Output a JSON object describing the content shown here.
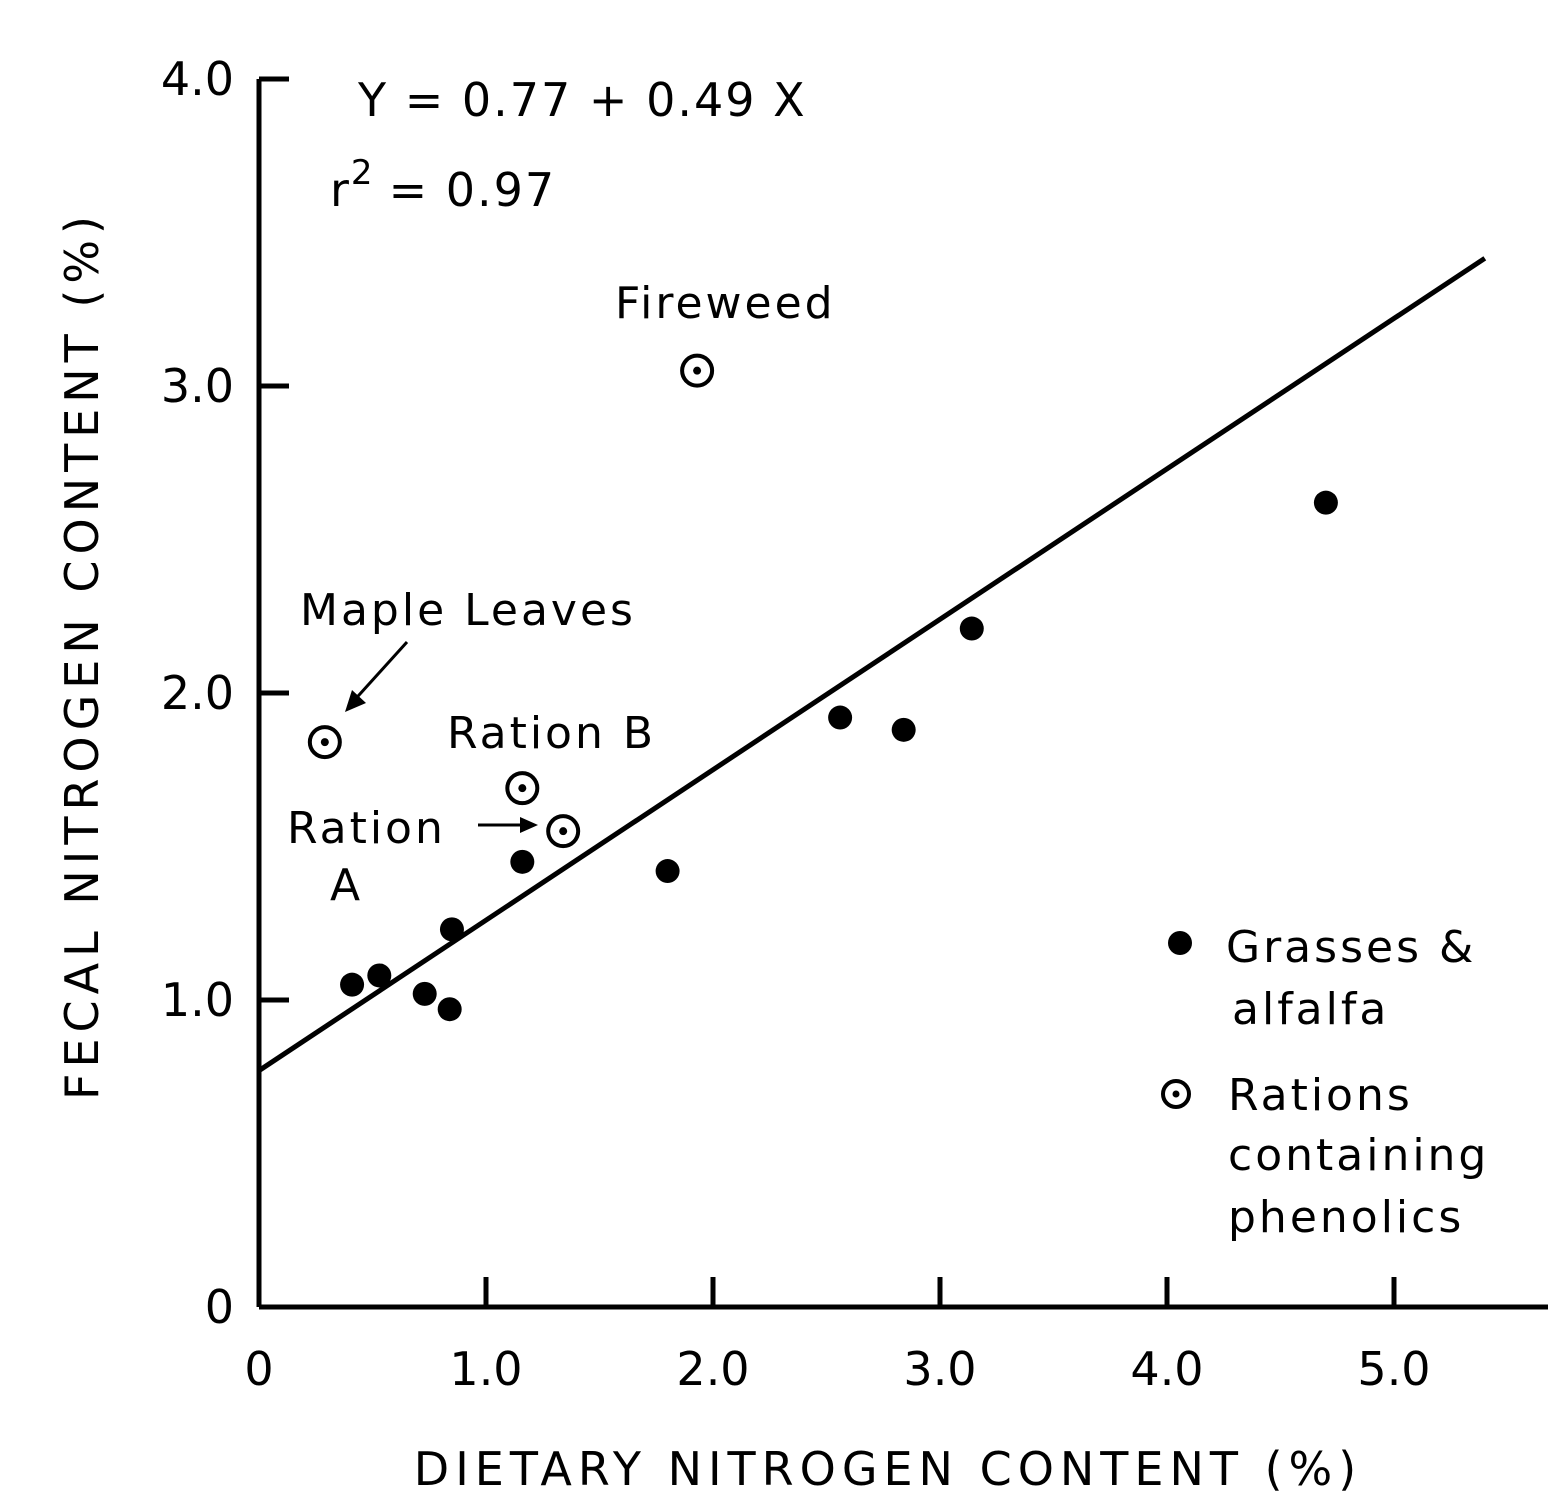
{
  "chart_data": {
    "type": "scatter",
    "xlabel": "DIETARY NITROGEN CONTENT (%)",
    "ylabel": "FECAL NITROGEN CONTENT (%)",
    "xlim": [
      0,
      5.5
    ],
    "ylim": [
      0,
      4.0
    ],
    "x_ticks": [
      0,
      1.0,
      2.0,
      3.0,
      4.0,
      5.0
    ],
    "x_tick_labels": [
      "0",
      "1.0",
      "2.0",
      "3.0",
      "4.0",
      "5.0"
    ],
    "y_ticks": [
      0,
      1.0,
      2.0,
      3.0,
      4.0
    ],
    "y_tick_labels": [
      "0",
      "1.0",
      "2.0",
      "3.0",
      "4.0"
    ],
    "grid": false,
    "equation": {
      "line1": "Y = 0.77 + 0.49 X",
      "r2_prefix": "r",
      "r2_sup": "2",
      "r2_value": "= 0.97"
    },
    "regression": {
      "intercept": 0.77,
      "slope": 0.49,
      "x_range": [
        0,
        5.4
      ]
    },
    "series": [
      {
        "name": "Grasses & alfalfa",
        "marker": "filled",
        "points": [
          {
            "x": 0.41,
            "y": 1.05
          },
          {
            "x": 0.53,
            "y": 1.08
          },
          {
            "x": 0.73,
            "y": 1.02
          },
          {
            "x": 0.84,
            "y": 0.97
          },
          {
            "x": 0.85,
            "y": 1.23
          },
          {
            "x": 1.16,
            "y": 1.45
          },
          {
            "x": 1.8,
            "y": 1.42
          },
          {
            "x": 2.56,
            "y": 1.92
          },
          {
            "x": 2.84,
            "y": 1.88
          },
          {
            "x": 3.14,
            "y": 2.21
          },
          {
            "x": 4.7,
            "y": 2.62
          }
        ]
      },
      {
        "name": "Rations containing phenolics",
        "marker": "dotted-circle",
        "points": [
          {
            "x": 0.29,
            "y": 1.84,
            "label": "Maple Leaves"
          },
          {
            "x": 1.16,
            "y": 1.69,
            "label": "Ration B"
          },
          {
            "x": 1.34,
            "y": 1.55,
            "label": "Ration A"
          },
          {
            "x": 1.93,
            "y": 3.05,
            "label": "Fireweed"
          }
        ]
      }
    ],
    "annotations": {
      "fireweed": "Fireweed",
      "maple": "Maple Leaves",
      "ration_b": "Ration B",
      "ration_a_line1": "Ration",
      "ration_a_line2": "A"
    },
    "legend": {
      "placement": "lower-right",
      "filled_line1": "Grasses &",
      "filled_line2": "alfalfa",
      "open_line1": "Rations",
      "open_line2": "containing",
      "open_line3": "phenolics"
    }
  }
}
